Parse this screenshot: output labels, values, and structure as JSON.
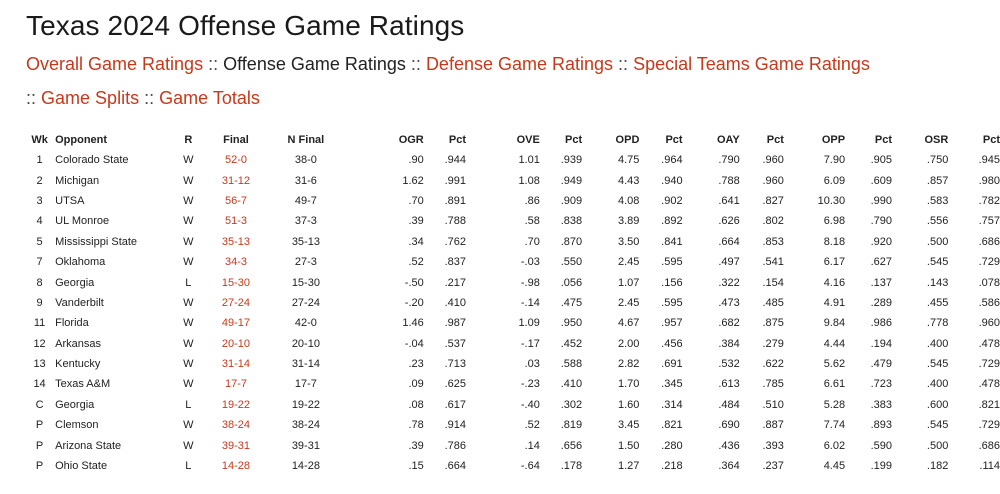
{
  "title": "Texas 2024 Offense Game Ratings",
  "nav": {
    "overall": "Overall Game Ratings",
    "offense": "Offense Game Ratings",
    "defense": "Defense Game Ratings",
    "special_teams": "Special Teams Game Ratings",
    "splits": "Game Splits",
    "totals": "Game Totals",
    "separator": "::"
  },
  "colors": {
    "link": "#c8381c",
    "text": "#222222"
  },
  "table": {
    "headers": [
      "Wk",
      "Opponent",
      "R",
      "Final",
      "N Final",
      "OGR",
      "Pct",
      "OVE",
      "Pct",
      "OPD",
      "Pct",
      "OAY",
      "Pct",
      "OPP",
      "Pct",
      "OSR",
      "Pct"
    ],
    "rows": [
      [
        "1",
        "Colorado State",
        "W",
        "52-0",
        "38-0",
        ".90",
        ".944",
        "1.01",
        ".939",
        "4.75",
        ".964",
        ".790",
        ".960",
        "7.90",
        ".905",
        ".750",
        ".945"
      ],
      [
        "2",
        "Michigan",
        "W",
        "31-12",
        "31-6",
        "1.62",
        ".991",
        "1.08",
        ".949",
        "4.43",
        ".940",
        ".788",
        ".960",
        "6.09",
        ".609",
        ".857",
        ".980"
      ],
      [
        "3",
        "UTSA",
        "W",
        "56-7",
        "49-7",
        ".70",
        ".891",
        ".86",
        ".909",
        "4.08",
        ".902",
        ".641",
        ".827",
        "10.30",
        ".990",
        ".583",
        ".782"
      ],
      [
        "4",
        "UL Monroe",
        "W",
        "51-3",
        "37-3",
        ".39",
        ".788",
        ".58",
        ".838",
        "3.89",
        ".892",
        ".626",
        ".802",
        "6.98",
        ".790",
        ".556",
        ".757"
      ],
      [
        "5",
        "Mississippi State",
        "W",
        "35-13",
        "35-13",
        ".34",
        ".762",
        ".70",
        ".870",
        "3.50",
        ".841",
        ".664",
        ".853",
        "8.18",
        ".920",
        ".500",
        ".686"
      ],
      [
        "7",
        "Oklahoma",
        "W",
        "34-3",
        "27-3",
        ".52",
        ".837",
        "-.03",
        ".550",
        "2.45",
        ".595",
        ".497",
        ".541",
        "6.17",
        ".627",
        ".545",
        ".729"
      ],
      [
        "8",
        "Georgia",
        "L",
        "15-30",
        "15-30",
        "-.50",
        ".217",
        "-.98",
        ".056",
        "1.07",
        ".156",
        ".322",
        ".154",
        "4.16",
        ".137",
        ".143",
        ".078"
      ],
      [
        "9",
        "Vanderbilt",
        "W",
        "27-24",
        "27-24",
        "-.20",
        ".410",
        "-.14",
        ".475",
        "2.45",
        ".595",
        ".473",
        ".485",
        "4.91",
        ".289",
        ".455",
        ".586"
      ],
      [
        "11",
        "Florida",
        "W",
        "49-17",
        "42-0",
        "1.46",
        ".987",
        "1.09",
        ".950",
        "4.67",
        ".957",
        ".682",
        ".875",
        "9.84",
        ".986",
        ".778",
        ".960"
      ],
      [
        "12",
        "Arkansas",
        "W",
        "20-10",
        "20-10",
        "-.04",
        ".537",
        "-.17",
        ".452",
        "2.00",
        ".456",
        ".384",
        ".279",
        "4.44",
        ".194",
        ".400",
        ".478"
      ],
      [
        "13",
        "Kentucky",
        "W",
        "31-14",
        "31-14",
        ".23",
        ".713",
        ".03",
        ".588",
        "2.82",
        ".691",
        ".532",
        ".622",
        "5.62",
        ".479",
        ".545",
        ".729"
      ],
      [
        "14",
        "Texas A&M",
        "W",
        "17-7",
        "17-7",
        ".09",
        ".625",
        "-.23",
        ".410",
        "1.70",
        ".345",
        ".613",
        ".785",
        "6.61",
        ".723",
        ".400",
        ".478"
      ],
      [
        "C",
        "Georgia",
        "L",
        "19-22",
        "19-22",
        ".08",
        ".617",
        "-.40",
        ".302",
        "1.60",
        ".314",
        ".484",
        ".510",
        "5.28",
        ".383",
        ".600",
        ".821"
      ],
      [
        "P",
        "Clemson",
        "W",
        "38-24",
        "38-24",
        ".78",
        ".914",
        ".52",
        ".819",
        "3.45",
        ".821",
        ".690",
        ".887",
        "7.74",
        ".893",
        ".545",
        ".729"
      ],
      [
        "P",
        "Arizona State",
        "W",
        "39-31",
        "39-31",
        ".39",
        ".786",
        ".14",
        ".656",
        "1.50",
        ".280",
        ".436",
        ".393",
        "6.02",
        ".590",
        ".500",
        ".686"
      ],
      [
        "P",
        "Ohio State",
        "L",
        "14-28",
        "14-28",
        ".15",
        ".664",
        "-.64",
        ".178",
        "1.27",
        ".218",
        ".364",
        ".237",
        "4.45",
        ".199",
        ".182",
        ".114"
      ]
    ]
  }
}
